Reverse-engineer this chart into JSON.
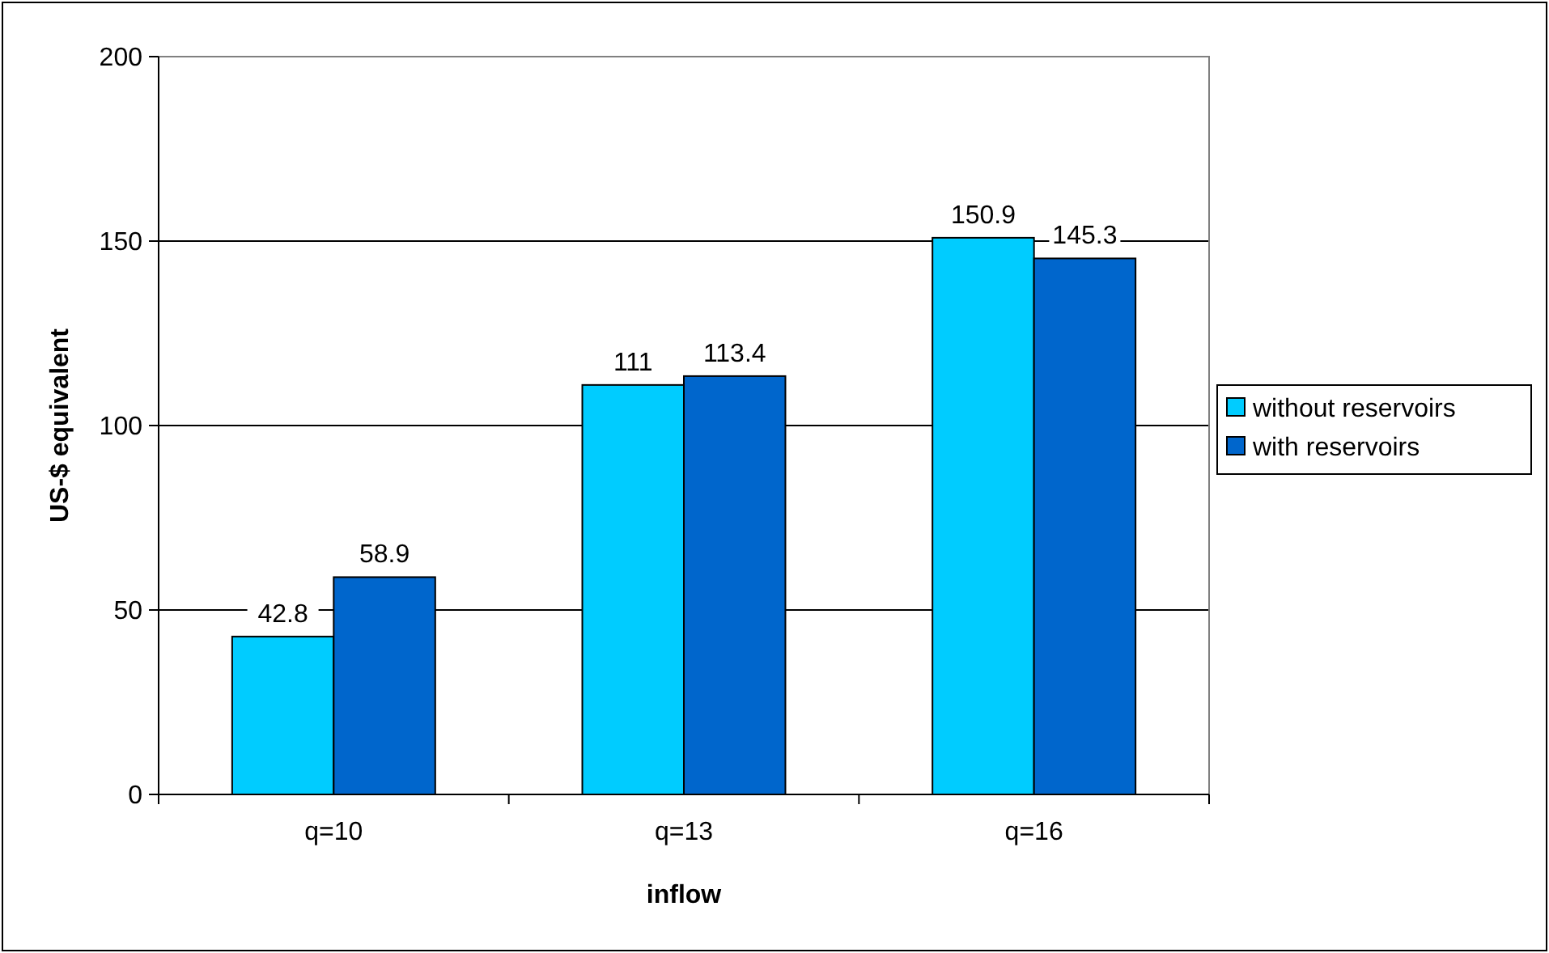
{
  "chart_data": {
    "type": "bar",
    "xlabel": "inflow",
    "ylabel": "US-$ equivalent",
    "categories": [
      "q=10",
      "q=13",
      "q=16"
    ],
    "series": [
      {
        "name": "without reservoirs",
        "color": "#00ccff",
        "values": [
          42.8,
          111,
          150.9
        ]
      },
      {
        "name": "with reservoirs",
        "color": "#0066cc",
        "values": [
          58.9,
          113.4,
          145.3
        ]
      }
    ],
    "ylim": [
      0,
      200
    ],
    "yticks": [
      0,
      50,
      100,
      150,
      200
    ],
    "grid": "y",
    "legend": "right",
    "data_labels": true
  }
}
